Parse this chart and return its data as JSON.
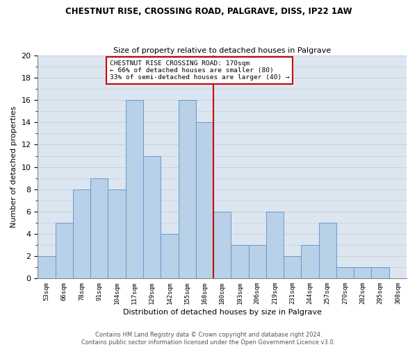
{
  "title_line1": "CHESTNUT RISE, CROSSING ROAD, PALGRAVE, DISS, IP22 1AW",
  "title_line2": "Size of property relative to detached houses in Palgrave",
  "xlabel": "Distribution of detached houses by size in Palgrave",
  "ylabel": "Number of detached properties",
  "categories": [
    "53sqm",
    "66sqm",
    "78sqm",
    "91sqm",
    "104sqm",
    "117sqm",
    "129sqm",
    "142sqm",
    "155sqm",
    "168sqm",
    "180sqm",
    "193sqm",
    "206sqm",
    "219sqm",
    "231sqm",
    "244sqm",
    "257sqm",
    "270sqm",
    "282sqm",
    "295sqm",
    "308sqm"
  ],
  "bar_heights": [
    2,
    5,
    8,
    9,
    8,
    16,
    11,
    4,
    16,
    14,
    6,
    3,
    3,
    6,
    2,
    3,
    5,
    1,
    1,
    1,
    0
  ],
  "bar_color": "#b8d0e8",
  "bar_edge_color": "#6699cc",
  "vline_index": 9.5,
  "vline_color": "#cc0000",
  "annotation_text": "CHESTNUT RISE CROSSING ROAD: 170sqm\n← 66% of detached houses are smaller (80)\n33% of semi-detached houses are larger (40) →",
  "annotation_box_color": "#cc0000",
  "ylim": [
    0,
    20
  ],
  "yticks": [
    0,
    2,
    4,
    6,
    8,
    10,
    12,
    14,
    16,
    18,
    20
  ],
  "grid_color": "#c8d0d8",
  "background_color": "#dce6f0",
  "footer_text": "Contains HM Land Registry data © Crown copyright and database right 2024.\nContains public sector information licensed under the Open Government Licence v3.0."
}
